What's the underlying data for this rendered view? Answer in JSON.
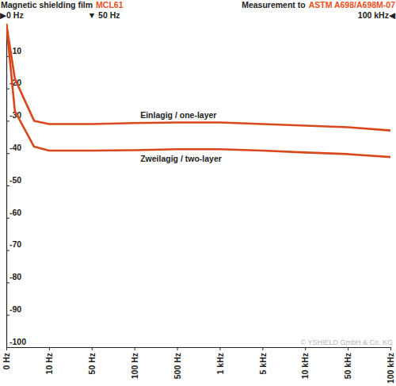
{
  "chart_data": {
    "type": "line",
    "title": "Magnetic shielding film",
    "title_highlight": "MCL61",
    "note": "Measurement to",
    "note_highlight": "ASTM A698/A698M-07",
    "range_markers": [
      {
        "x": 0,
        "label": "▶0 Hz"
      },
      {
        "x": 2,
        "label": "▼ 50 Hz"
      },
      {
        "x": 9,
        "label": "100 kHz◀"
      }
    ],
    "copyright": "© YSHIELD GmbH & Co. KG",
    "x": [
      0,
      0.2,
      0.65,
      1,
      2,
      3,
      4,
      5,
      6,
      7,
      8,
      9
    ],
    "series": [
      {
        "name": "Einlagig / one-layer",
        "color": "#d9481c",
        "values": [
          0,
          -17,
          -30,
          -31,
          -31,
          -30.7,
          -30.5,
          -30.5,
          -31,
          -31.5,
          -32,
          -33
        ]
      },
      {
        "name": "Zweilagig / two-layer",
        "color": "#d9481c",
        "values": [
          0,
          -27,
          -38,
          -39.2,
          -39.2,
          -39.1,
          -38.8,
          -38.8,
          -39.2,
          -39.8,
          -40.3,
          -41.2
        ]
      }
    ],
    "xlim": [
      0,
      9
    ],
    "xticks": [
      {
        "value": 0,
        "label": "0 Hz"
      },
      {
        "value": 1,
        "label": "10 Hz"
      },
      {
        "value": 2,
        "label": "50 Hz"
      },
      {
        "value": 3,
        "label": "100 Hz"
      },
      {
        "value": 4,
        "label": "500 Hz"
      },
      {
        "value": 5,
        "label": "1 kHz"
      },
      {
        "value": 6,
        "label": "5 kHz"
      },
      {
        "value": 7,
        "label": "10 kHz"
      },
      {
        "value": 8,
        "label": "50 kHz"
      },
      {
        "value": 9,
        "label": "100 kHz"
      }
    ],
    "ylim": [
      -100,
      0
    ],
    "yticks": [
      -10,
      -20,
      -30,
      -40,
      -50,
      -60,
      -70,
      -80,
      -90,
      -100
    ],
    "grid": false
  }
}
